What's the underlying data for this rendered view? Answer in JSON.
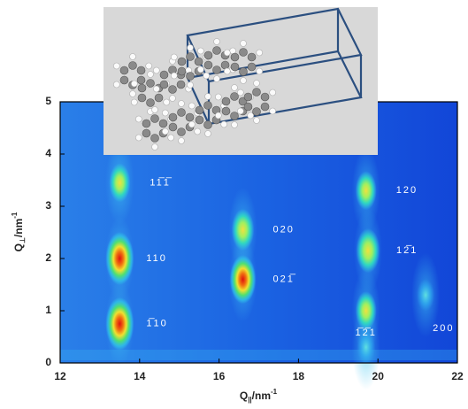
{
  "chart_data": {
    "type": "scatter",
    "x_label": {
      "symbol": "Q",
      "sub": "||",
      "unit": "/nm",
      "sup": "-1"
    },
    "y_label": {
      "symbol": "Q",
      "sub": "⊥",
      "unit": "/nm",
      "sup": "-1"
    },
    "xlim": [
      12,
      22
    ],
    "xticks": [
      12,
      14,
      16,
      18,
      20,
      22
    ],
    "ylim": [
      0,
      5
    ],
    "yticks": [
      0,
      1,
      2,
      3,
      4,
      5
    ],
    "peaks": {
      "x": [
        13.5,
        13.5,
        13.5,
        16.6,
        16.6,
        19.7,
        19.75,
        19.7,
        19.7,
        21.2
      ],
      "y": [
        3.45,
        2.0,
        0.75,
        2.55,
        1.6,
        3.3,
        2.15,
        1.0,
        0.3,
        1.3
      ],
      "intensity": [
        0.5,
        1.0,
        1.0,
        0.6,
        0.85,
        0.5,
        0.7,
        0.5,
        0.3,
        0.25
      ],
      "labels": [
        "11̅1̅",
        "110",
        "1̅10",
        "020",
        "021̅",
        "120",
        "12̅1",
        null,
        "1̅2̅1",
        "200"
      ]
    }
  }
}
